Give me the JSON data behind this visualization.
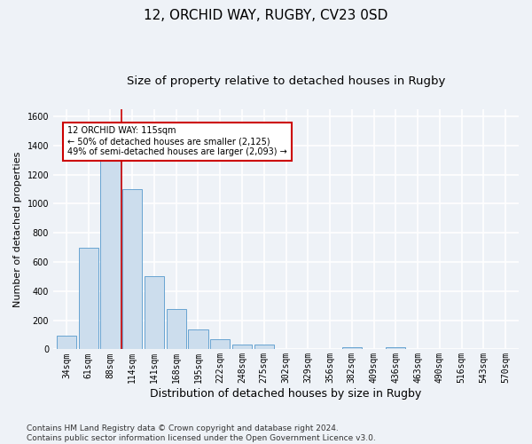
{
  "title1": "12, ORCHID WAY, RUGBY, CV23 0SD",
  "title2": "Size of property relative to detached houses in Rugby",
  "xlabel": "Distribution of detached houses by size in Rugby",
  "ylabel": "Number of detached properties",
  "categories": [
    "34sqm",
    "61sqm",
    "88sqm",
    "114sqm",
    "141sqm",
    "168sqm",
    "195sqm",
    "222sqm",
    "248sqm",
    "275sqm",
    "302sqm",
    "329sqm",
    "356sqm",
    "382sqm",
    "409sqm",
    "436sqm",
    "463sqm",
    "490sqm",
    "516sqm",
    "543sqm",
    "570sqm"
  ],
  "values": [
    95,
    700,
    1330,
    1100,
    500,
    275,
    135,
    70,
    35,
    35,
    0,
    0,
    0,
    15,
    0,
    15,
    0,
    0,
    0,
    0,
    0
  ],
  "bar_color": "#ccdded",
  "bar_edge_color": "#5599cc",
  "annotation_text": "12 ORCHID WAY: 115sqm\n← 50% of detached houses are smaller (2,125)\n49% of semi-detached houses are larger (2,093) →",
  "annotation_box_color": "#ffffff",
  "annotation_box_edge_color": "#cc0000",
  "vline_color": "#cc0000",
  "footer": "Contains HM Land Registry data © Crown copyright and database right 2024.\nContains public sector information licensed under the Open Government Licence v3.0.",
  "ylim": [
    0,
    1650
  ],
  "background_color": "#eef2f7",
  "plot_background": "#eef2f7",
  "grid_color": "#ffffff",
  "title1_fontsize": 11,
  "title2_fontsize": 9.5,
  "xlabel_fontsize": 9,
  "ylabel_fontsize": 8,
  "tick_fontsize": 7,
  "footer_fontsize": 6.5
}
